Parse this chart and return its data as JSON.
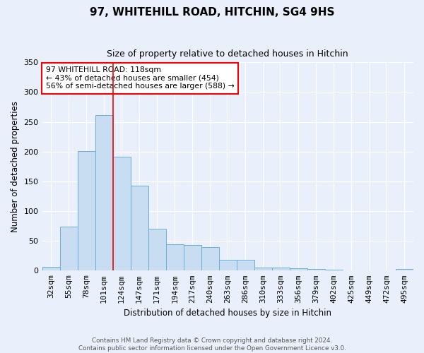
{
  "title1": "97, WHITEHILL ROAD, HITCHIN, SG4 9HS",
  "title2": "Size of property relative to detached houses in Hitchin",
  "xlabel": "Distribution of detached houses by size in Hitchin",
  "ylabel": "Number of detached properties",
  "categories": [
    "32sqm",
    "55sqm",
    "78sqm",
    "101sqm",
    "124sqm",
    "147sqm",
    "171sqm",
    "194sqm",
    "217sqm",
    "240sqm",
    "263sqm",
    "286sqm",
    "310sqm",
    "333sqm",
    "356sqm",
    "379sqm",
    "402sqm",
    "425sqm",
    "449sqm",
    "472sqm",
    "495sqm"
  ],
  "values": [
    6,
    74,
    201,
    261,
    191,
    143,
    70,
    44,
    43,
    40,
    18,
    18,
    5,
    5,
    4,
    3,
    2,
    0,
    0,
    0,
    3
  ],
  "bar_color": "#c9ddf2",
  "bar_edge_color": "#6aaed6",
  "red_line_x": 3.5,
  "annotation_text": "97 WHITEHILL ROAD: 118sqm\n← 43% of detached houses are smaller (454)\n56% of semi-detached houses are larger (588) →",
  "annotation_box_color": "white",
  "annotation_box_edge": "red",
  "footer": "Contains HM Land Registry data © Crown copyright and database right 2024.\nContains public sector information licensed under the Open Government Licence v3.0.",
  "background_color": "#eaf0fb",
  "grid_color": "#ffffff",
  "ylim": [
    0,
    350
  ],
  "yticks": [
    0,
    50,
    100,
    150,
    200,
    250,
    300,
    350
  ]
}
